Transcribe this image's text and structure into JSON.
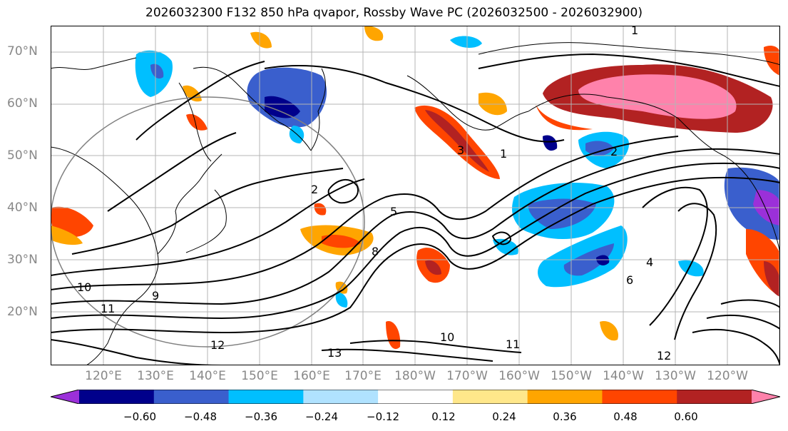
{
  "title": "2026032300 F132 850 hPa qvapor, Rossby Wave PC (2026032500 - 2026032900)",
  "latitude_labels": [
    "70°N",
    "60°N",
    "50°N",
    "40°N",
    "30°N",
    "20°N"
  ],
  "longitude_labels": [
    "120°E",
    "130°E",
    "140°E",
    "150°E",
    "160°E",
    "170°E",
    "180°W",
    "170°W",
    "160°W",
    "150°W",
    "140°W",
    "130°W",
    "120°W"
  ],
  "contour_labels": [
    "1",
    "1",
    "2",
    "2",
    "3",
    "4",
    "5",
    "6",
    "8",
    "9",
    "10",
    "10",
    "11",
    "11",
    "12",
    "12",
    "13"
  ],
  "colorbar": {
    "tick_labels": [
      "−0.60",
      "−0.48",
      "−0.36",
      "−0.24",
      "−0.12",
      "0.12",
      "0.24",
      "0.36",
      "0.48",
      "0.60"
    ],
    "colors": [
      "#9b30d9",
      "#00008b",
      "#3a5fcd",
      "#00bfff",
      "#b0e2ff",
      "#ffffff",
      "#ffe78a",
      "#ffa500",
      "#ff4500",
      "#b22222",
      "#ff82ab"
    ],
    "extend": "both"
  }
}
